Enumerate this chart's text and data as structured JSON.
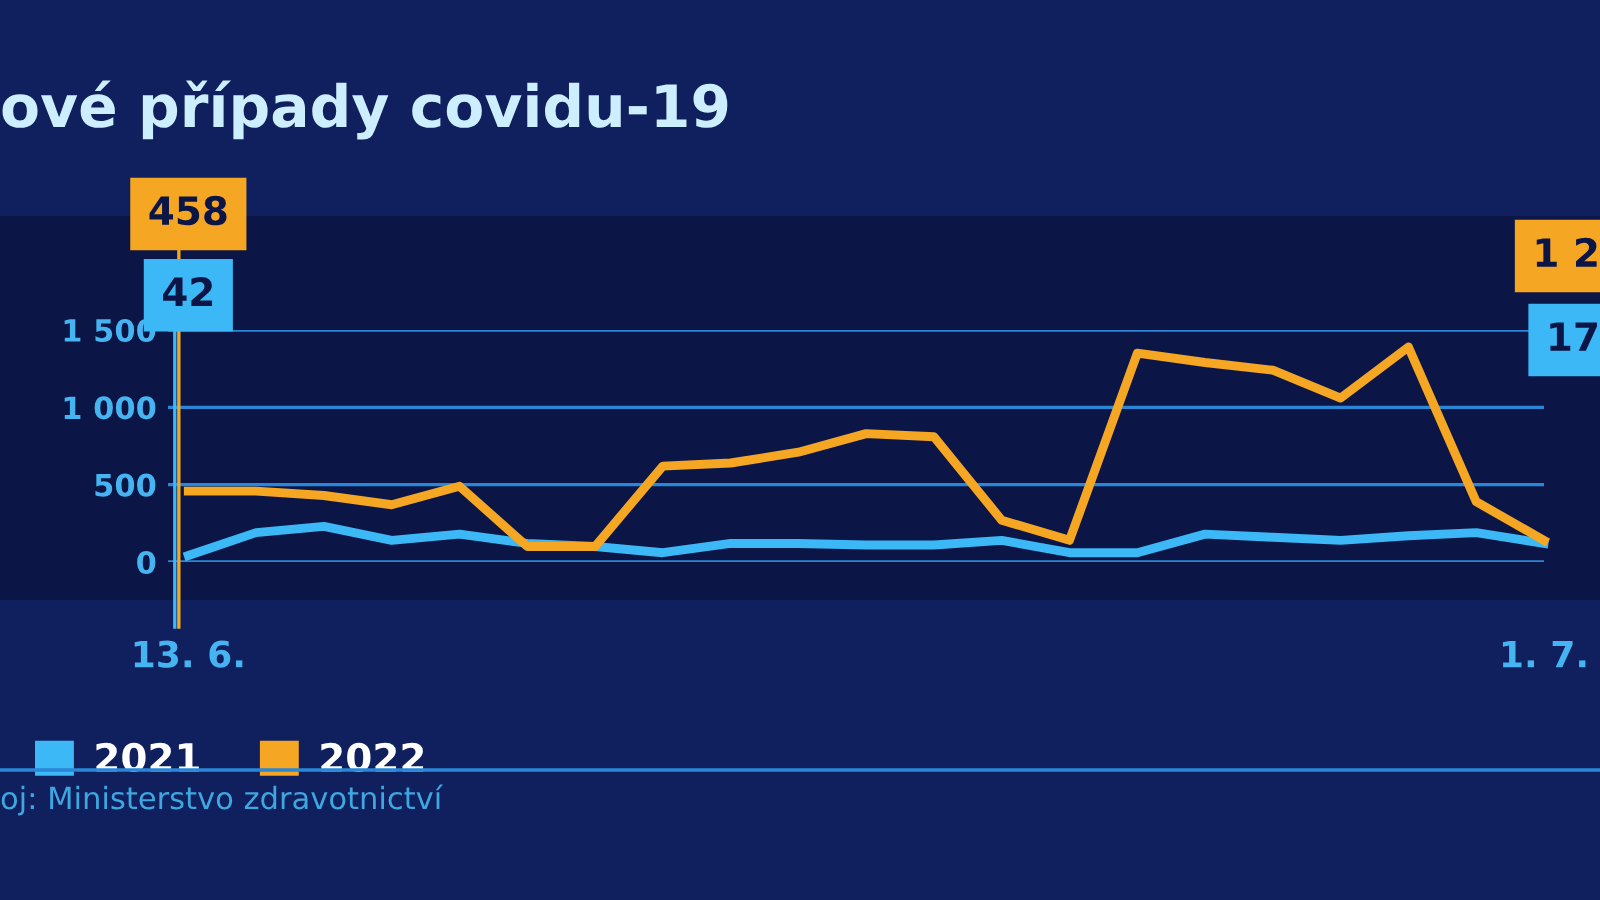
{
  "chart_data": {
    "type": "line",
    "title": "ové případy covidu-19",
    "categories": [
      "13. 6.",
      null,
      null,
      null,
      null,
      null,
      null,
      null,
      null,
      null,
      null,
      null,
      null,
      null,
      null,
      null,
      null,
      null,
      null,
      null,
      "1. 7."
    ],
    "series": [
      {
        "name": "2021",
        "color": "#3bb8f5",
        "values": [
          42,
          190,
          230,
          140,
          180,
          120,
          100,
          60,
          120,
          120,
          110,
          110,
          140,
          60,
          60,
          180,
          160,
          140,
          170,
          190,
          120
        ]
      },
      {
        "name": "2022",
        "color": "#f5a623",
        "values": [
          458,
          458,
          430,
          370,
          490,
          100,
          100,
          620,
          640,
          710,
          830,
          810,
          270,
          140,
          1350,
          1290,
          1240,
          1060,
          1390,
          390,
          140
        ]
      }
    ],
    "ylim": [
      0,
      1500
    ],
    "yticks": [
      0,
      500,
      {
        "value": 1000,
        "label": "1 000"
      },
      {
        "value": 1500,
        "label": "1 500"
      }
    ],
    "grid": "y",
    "legend": "bottom left",
    "marker": "none",
    "line_style": "solid",
    "annotations": [
      "42",
      "458",
      "1 2",
      "17",
      "oj: Ministerstvo zdravotnictví"
    ]
  }
}
